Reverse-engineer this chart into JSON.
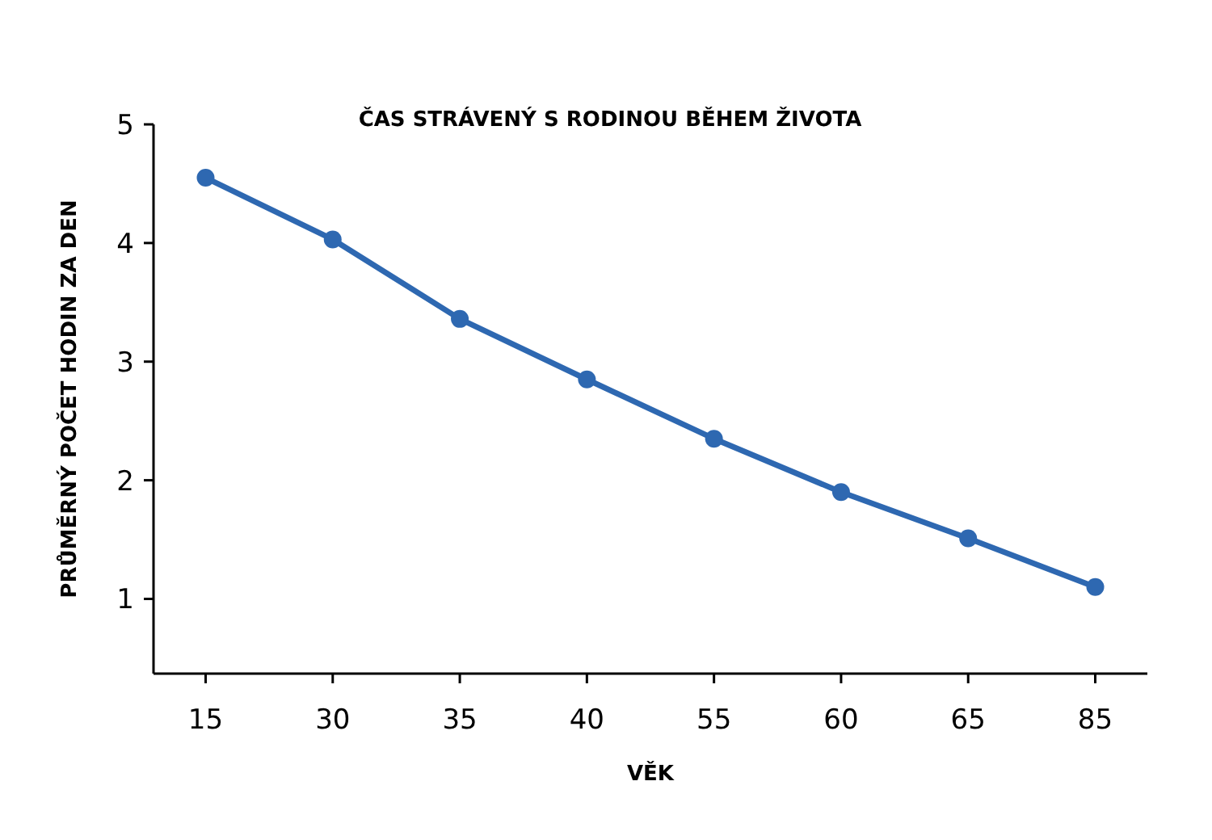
{
  "chart_data": {
    "type": "line",
    "title": "ČAS STRÁVENÝ S RODINOU BĚHEM ŽIVOTA",
    "xlabel": "VĚK",
    "ylabel": "PRŮMĚRNÝ POČET HODIN ZA DEN",
    "categories": [
      "15",
      "30",
      "35",
      "40",
      "55",
      "60",
      "65",
      "85"
    ],
    "series": [
      {
        "color": "#2e68b1",
        "values": [
          4.55,
          4.03,
          3.36,
          2.85,
          2.35,
          1.9,
          1.51,
          1.1
        ]
      }
    ],
    "ylim": [
      0.37,
      5
    ],
    "yticks": [
      1,
      2,
      3,
      4,
      5
    ],
    "marker": "circle",
    "line_style": "solid"
  }
}
